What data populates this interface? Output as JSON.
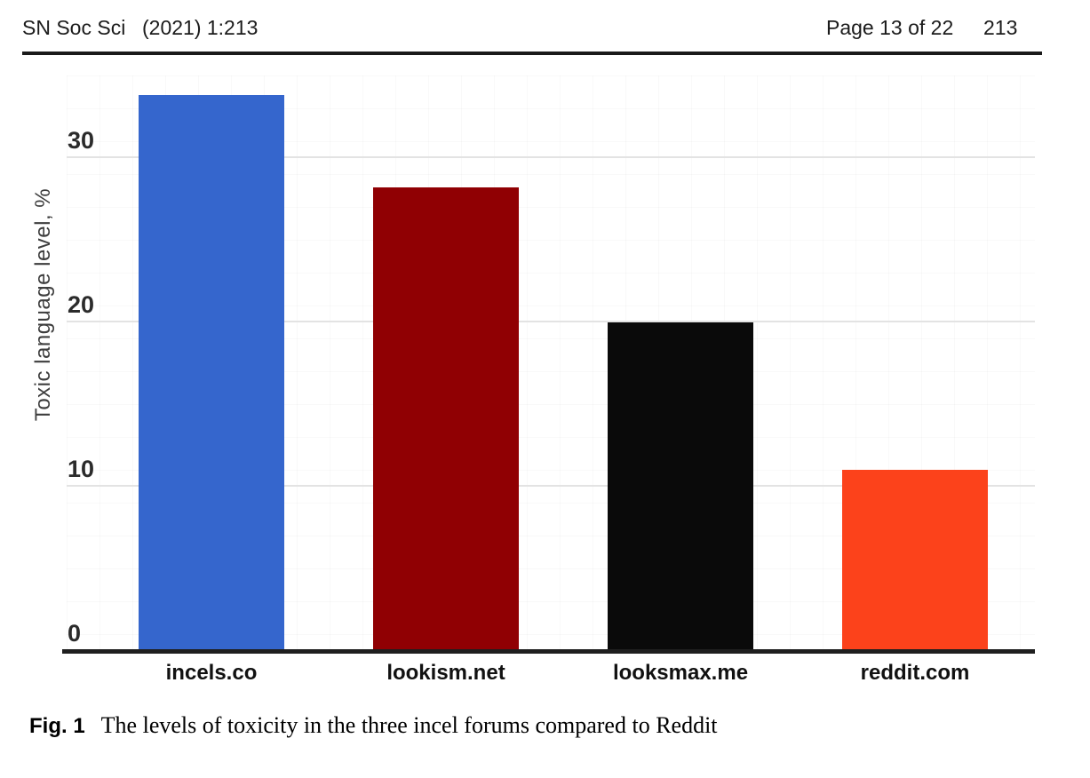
{
  "header": {
    "journal": "SN Soc Sci",
    "issue": "(2021) 1:213",
    "page_info": "Page 13 of 22",
    "article_number": "213"
  },
  "chart_data": {
    "type": "bar",
    "title": "",
    "categories": [
      "incels.co",
      "lookism.net",
      "looksmax.me",
      "reddit.com"
    ],
    "values": [
      33.8,
      28.2,
      20,
      11
    ],
    "bar_colors": [
      "#3566cd",
      "#900003",
      "#0a0a0a",
      "#fc421b"
    ],
    "ylabel": "Toxic language level, %",
    "xlabel": "",
    "yticks": [
      0,
      10,
      20,
      30
    ],
    "ylim": [
      0,
      35
    ],
    "grid": true,
    "legend_position": "none"
  },
  "caption": {
    "label": "Fig. 1",
    "text": "The levels of toxicity in the three incel forums compared to Reddit"
  },
  "colors": {
    "axis": "#1f1f1f",
    "gridline": "#e3e3e3",
    "header_rule": "#1a1a1a"
  }
}
